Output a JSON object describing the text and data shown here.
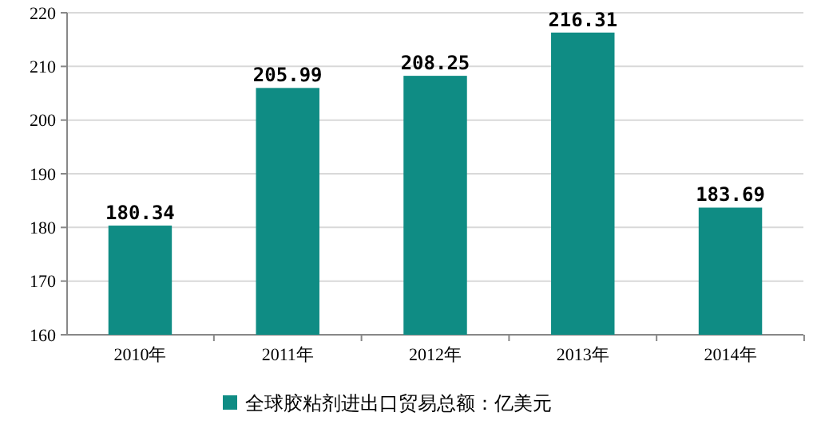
{
  "chart_data": {
    "type": "bar",
    "categories": [
      "2010年",
      "2011年",
      "2012年",
      "2013年",
      "2014年"
    ],
    "series": [
      {
        "name": "全球胶粘剂进出口贸易总额：亿美元",
        "color": "#0f8c84",
        "values": [
          180.34,
          205.99,
          208.25,
          216.31,
          183.69
        ]
      }
    ],
    "ylim": [
      160,
      220
    ],
    "yticks": [
      160,
      170,
      180,
      190,
      200,
      210,
      220
    ],
    "grid": "y",
    "data_labels": true,
    "legend": "bottom"
  }
}
